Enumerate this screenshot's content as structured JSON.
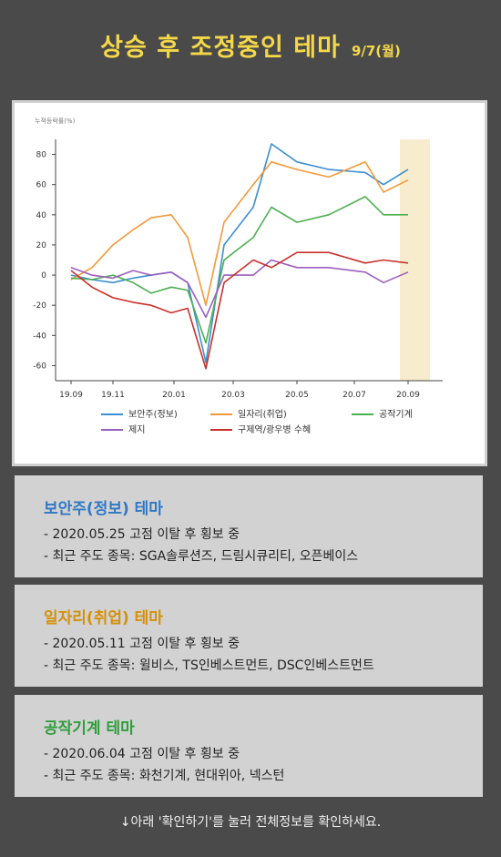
{
  "header": {
    "title": "상승 후 조정중인 테마",
    "date": "9/7(월)"
  },
  "chart_data": {
    "type": "line",
    "ylabel": "누적등락률(%)",
    "xticks": [
      "19.09",
      "19.11",
      "20.01",
      "20.03",
      "20.05",
      "20.07",
      "20.09"
    ],
    "yticks": [
      80,
      60,
      40,
      20,
      0,
      -20,
      -40,
      -60
    ],
    "ylim": [
      -70,
      90
    ],
    "highlight_range": [
      "2020.08.10",
      "2020.09.07"
    ],
    "x": [
      "2019.09",
      "2019.10",
      "2019.11",
      "2019.12",
      "2020.01",
      "2020.02",
      "2020.03.01",
      "2020.03.19",
      "2020.04",
      "2020.05",
      "2020.05.25",
      "2020.06",
      "2020.07",
      "2020.08",
      "2020.08.20",
      "2020.09"
    ],
    "series": [
      {
        "name": "보안주(정보)",
        "color": "#3b8fd0",
        "values": [
          0,
          -3,
          -5,
          -2,
          0,
          2,
          -5,
          -58,
          20,
          45,
          87,
          75,
          70,
          68,
          60,
          70
        ]
      },
      {
        "name": "일자리(취업)",
        "color": "#f29a3a",
        "values": [
          -3,
          5,
          20,
          30,
          38,
          40,
          25,
          -20,
          35,
          60,
          75,
          70,
          65,
          75,
          55,
          63
        ]
      },
      {
        "name": "공작기계",
        "color": "#4caf50",
        "values": [
          -2,
          -3,
          0,
          -5,
          -12,
          -8,
          -10,
          -45,
          10,
          25,
          45,
          35,
          40,
          52,
          40,
          40
        ]
      },
      {
        "name": "제지",
        "color": "#9b5fc0",
        "values": [
          5,
          0,
          -2,
          3,
          0,
          2,
          -5,
          -28,
          0,
          0,
          10,
          5,
          5,
          2,
          -5,
          2
        ]
      },
      {
        "name": "구제역/광우병 수혜",
        "color": "#c9302c",
        "values": [
          3,
          -8,
          -15,
          -18,
          -20,
          -25,
          -22,
          -62,
          -5,
          10,
          5,
          15,
          15,
          8,
          10,
          8
        ]
      }
    ]
  },
  "cards": [
    {
      "title": "보안주(정보) 테마",
      "color": "#2f78c4",
      "line1": "- 2020.05.25 고점 이탈 후 횡보 중",
      "line2": "- 최근 주도 종목: SGA솔루션즈, 드림시큐리티, 오픈베이스"
    },
    {
      "title": "일자리(취업) 테마",
      "color": "#d4900a",
      "line1": "- 2020.05.11 고점 이탈 후 횡보 중",
      "line2": "- 최근 주도 종목: 윌비스, TS인베스트먼트, DSC인베스트먼트"
    },
    {
      "title": "공작기계 테마",
      "color": "#2e9e3a",
      "line1": "- 2020.06.04 고점 이탈 후 횡보 중",
      "line2": "- 최근 주도 종목: 화천기계, 현대위아, 넥스턴"
    }
  ],
  "footer": {
    "text": "↓아래 '확인하기'를 눌러 전체정보를 확인하세요."
  }
}
